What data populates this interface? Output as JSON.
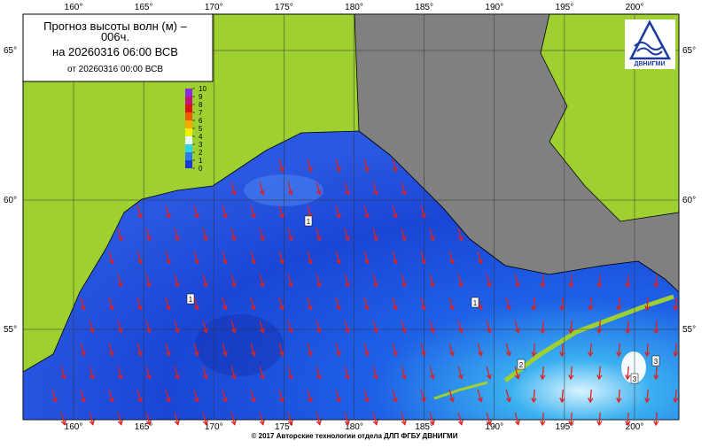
{
  "title": {
    "line1": "Прогноз высоты волн (м) –",
    "line2": "006ч.",
    "forecast": "на 20260316 06:00 ВСВ",
    "issued": "от 20260316 00:00 ВСВ"
  },
  "longitudes": [
    {
      "value": 160,
      "label": "160°"
    },
    {
      "value": 165,
      "label": "165°"
    },
    {
      "value": 170,
      "label": "170°"
    },
    {
      "value": 175,
      "label": "175°"
    },
    {
      "value": 180,
      "label": "180°"
    },
    {
      "value": 185,
      "label": "185°"
    },
    {
      "value": 190,
      "label": "190°"
    },
    {
      "value": 195,
      "label": "195°"
    },
    {
      "value": 200,
      "label": "200°"
    }
  ],
  "latitudes": [
    {
      "value": 65,
      "label": "65°"
    },
    {
      "value": 60,
      "label": "60°"
    },
    {
      "value": 55,
      "label": "55°"
    }
  ],
  "colorbar": {
    "ticks": [
      10,
      9,
      8,
      7,
      6,
      5,
      4,
      3,
      2,
      1,
      0
    ],
    "colors": [
      "#8a2be2",
      "#c0147a",
      "#e01010",
      "#f05a00",
      "#f8a800",
      "#f0f000",
      "#e8f8ff",
      "#30d0f0",
      "#2a7af0",
      "#1a3ad8"
    ]
  },
  "contour_labels": [
    1,
    1,
    1,
    2,
    3,
    3
  ],
  "logo": "ДВНИГМИ",
  "footer": "© 2017 Авторские технологии отдела ДЛП ФГБУ ДВНИГМИ"
}
